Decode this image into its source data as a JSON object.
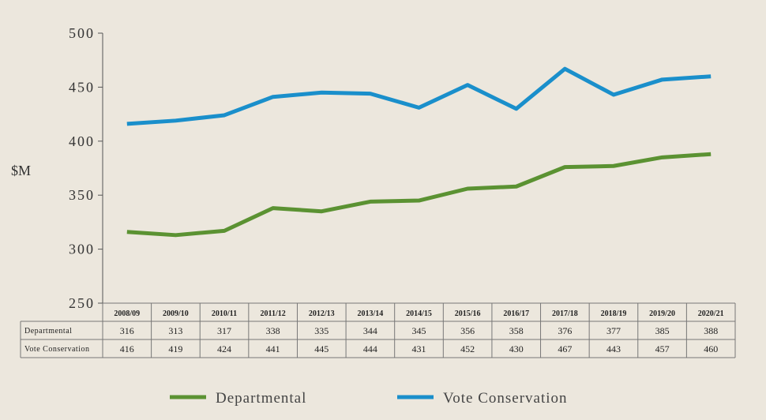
{
  "chart_data": {
    "type": "line",
    "ylabel": "$M",
    "ylim": [
      250,
      500
    ],
    "yticks": [
      "250",
      "300",
      "350",
      "400",
      "450",
      "500"
    ],
    "categories": [
      "2008/09",
      "2009/10",
      "2010/11",
      "2011/12",
      "2012/13",
      "2013/14",
      "2014/15",
      "2015/16",
      "2016/17",
      "2017/18",
      "2018/19",
      "2019/20",
      "2020/21"
    ],
    "series": [
      {
        "name": "Departmental",
        "color": "#5b9232",
        "values": [
          316,
          313,
          317,
          338,
          335,
          344,
          345,
          356,
          358,
          376,
          377,
          385,
          388
        ]
      },
      {
        "name": "Vote Conservation",
        "color": "#1a8fcb",
        "values": [
          416,
          419,
          424,
          441,
          445,
          444,
          431,
          452,
          430,
          467,
          443,
          457,
          460
        ]
      }
    ],
    "table": {
      "row_labels": [
        "Departmental",
        "Vote Conservation"
      ]
    },
    "legend": {
      "placement": "bottom",
      "entries": [
        "Departmental",
        "Vote Conservation"
      ]
    },
    "grid": false
  }
}
